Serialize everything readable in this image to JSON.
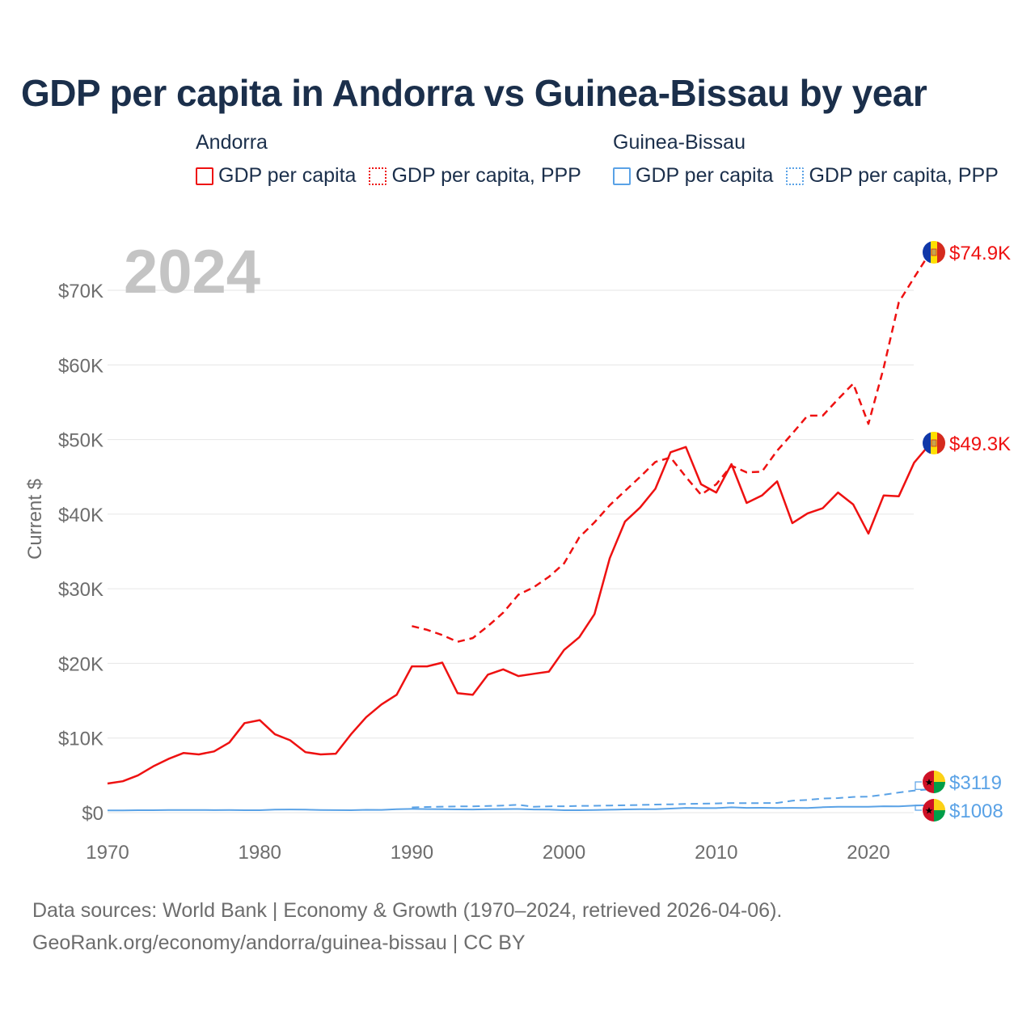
{
  "title": "GDP per capita in Andorra vs Guinea-Bissau by year",
  "legend": {
    "andorra": {
      "country": "Andorra",
      "gdp_label": "GDP per capita",
      "ppp_label": "GDP per capita, PPP"
    },
    "guinea_bissau": {
      "country": "Guinea-Bissau",
      "gdp_label": "GDP per capita",
      "ppp_label": "GDP per capita, PPP"
    }
  },
  "footer": {
    "line1": "Data sources: World Bank | Economy & Growth (1970–2024, retrieved 2026-04-06).",
    "line2": "GeoRank.org/economy/andorra/guinea-bissau | CC BY"
  },
  "chart_data": {
    "type": "line",
    "watermark_year": "2024",
    "ylabel": "Current $",
    "xlim": [
      1970,
      2024
    ],
    "ylim": [
      0,
      75000
    ],
    "x_ticks": [
      1970,
      1980,
      1990,
      2000,
      2010,
      2020
    ],
    "y_ticks": [
      0,
      10000,
      20000,
      30000,
      40000,
      50000,
      60000,
      70000
    ],
    "y_tick_labels": [
      "$0",
      "$10K",
      "$20K",
      "$30K",
      "$40K",
      "$50K",
      "$60K",
      "$70K"
    ],
    "colors": {
      "andorra": "#ee1111",
      "guinea_bissau": "#5aa2e6",
      "grid": "#e6e6e6",
      "axis_text": "#6d6d6d"
    },
    "series": [
      {
        "name": "Andorra GDP per capita",
        "country": "andorra",
        "style": "solid",
        "start_year": 1970,
        "end_label": "$49.3K",
        "values": [
          3900,
          4200,
          5000,
          6200,
          7200,
          8000,
          7800,
          8200,
          9400,
          12000,
          12400,
          10500,
          9700,
          8100,
          7800,
          7900,
          10500,
          12800,
          14500,
          15800,
          19600,
          19600,
          20100,
          16000,
          15800,
          18500,
          19200,
          18300,
          18600,
          18900,
          21800,
          23500,
          26600,
          34100,
          39000,
          40900,
          43400,
          48300,
          49000,
          44000,
          42900,
          46700,
          41500,
          42500,
          44400,
          38800,
          40100,
          40800,
          42900,
          41300,
          37400,
          42500,
          42400,
          46900,
          49300
        ]
      },
      {
        "name": "Andorra GDP per capita, PPP",
        "country": "andorra",
        "style": "dashed",
        "start_year": 1990,
        "end_label": "$74.9K",
        "values": [
          25000,
          24500,
          23800,
          22900,
          23400,
          25000,
          26800,
          29200,
          30200,
          31600,
          33400,
          36900,
          38900,
          41200,
          43100,
          45000,
          47000,
          47600,
          45000,
          42600,
          44000,
          46500,
          45600,
          45700,
          48500,
          50800,
          53200,
          53200,
          55400,
          57500,
          52100,
          59600,
          68400,
          71700,
          74900
        ]
      },
      {
        "name": "Guinea-Bissau GDP per capita",
        "country": "guinea_bissau",
        "style": "solid",
        "start_year": 1970,
        "end_label": "$1008",
        "values": [
          300,
          300,
          320,
          330,
          350,
          360,
          360,
          340,
          350,
          330,
          320,
          400,
          420,
          400,
          350,
          340,
          330,
          380,
          370,
          450,
          500,
          480,
          450,
          430,
          420,
          470,
          480,
          490,
          420,
          400,
          330,
          330,
          350,
          390,
          430,
          460,
          470,
          540,
          640,
          610,
          610,
          720,
          640,
          650,
          630,
          640,
          630,
          730,
          790,
          780,
          790,
          860,
          830,
          950,
          1008
        ]
      },
      {
        "name": "Guinea-Bissau GDP per capita, PPP",
        "country": "guinea_bissau",
        "style": "dashed",
        "start_year": 1990,
        "end_label": "$3119",
        "values": [
          700,
          760,
          800,
          830,
          850,
          890,
          950,
          1050,
          780,
          850,
          860,
          900,
          920,
          950,
          990,
          1030,
          1080,
          1120,
          1170,
          1200,
          1230,
          1290,
          1270,
          1280,
          1300,
          1600,
          1700,
          1900,
          1950,
          2100,
          2150,
          2400,
          2700,
          2950,
          3119
        ]
      }
    ]
  }
}
